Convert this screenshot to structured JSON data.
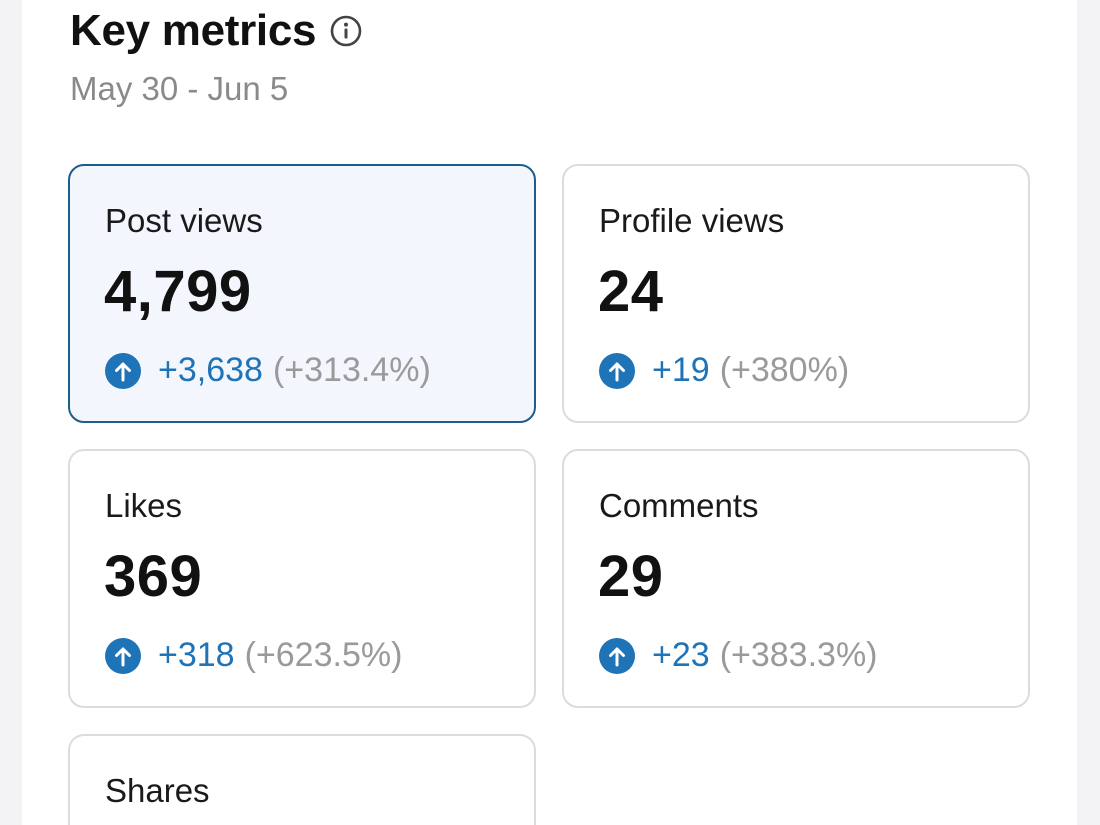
{
  "header": {
    "title": "Key metrics",
    "date_range": "May 30 - Jun 5"
  },
  "colors": {
    "accent_blue": "#1f73b7",
    "selected_border": "#1d5d8c",
    "selected_bg": "#f4f6fd",
    "muted_text": "#8a8a8a"
  },
  "metrics": [
    {
      "label": "Post views",
      "value": "4,799",
      "delta": "+3,638",
      "percent": "(+313.4%)",
      "selected": true,
      "icon": "arrow-up-circle-icon"
    },
    {
      "label": "Profile views",
      "value": "24",
      "delta": "+19",
      "percent": "(+380%)",
      "selected": false,
      "icon": "arrow-up-circle-icon"
    },
    {
      "label": "Likes",
      "value": "369",
      "delta": "+318",
      "percent": "(+623.5%)",
      "selected": false,
      "icon": "arrow-up-circle-icon"
    },
    {
      "label": "Comments",
      "value": "29",
      "delta": "+23",
      "percent": "(+383.3%)",
      "selected": false,
      "icon": "arrow-up-circle-icon"
    },
    {
      "label": "Shares",
      "selected": false
    }
  ]
}
